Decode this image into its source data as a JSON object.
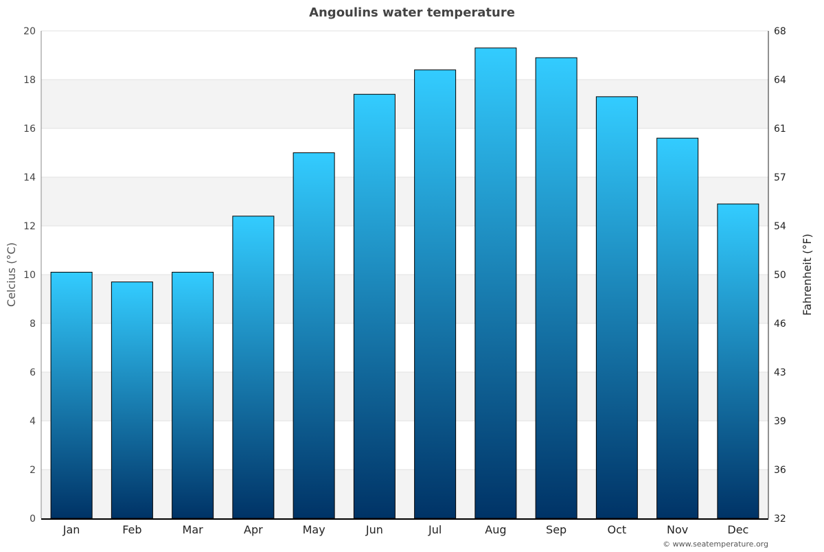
{
  "chart_data": {
    "type": "bar",
    "title": "Angoulins water temperature",
    "ylabel": "Celcius (°C)",
    "ylabel_right": "Fahrenheit (°F)",
    "xlabel": "",
    "categories": [
      "Jan",
      "Feb",
      "Mar",
      "Apr",
      "May",
      "Jun",
      "Jul",
      "Aug",
      "Sep",
      "Oct",
      "Nov",
      "Dec"
    ],
    "values": [
      10.1,
      9.7,
      10.1,
      12.4,
      15.0,
      17.4,
      18.4,
      19.3,
      18.9,
      17.3,
      15.6,
      12.9
    ],
    "ylim": [
      0,
      20
    ],
    "yticks": [
      0,
      2,
      4,
      6,
      8,
      10,
      12,
      14,
      16,
      18,
      20
    ],
    "yticks_right": [
      32,
      36,
      39,
      43,
      46,
      50,
      54,
      57,
      61,
      64,
      68
    ],
    "grid": true,
    "colors": {
      "bar_top": "#33ccff",
      "bar_bottom": "#003366",
      "band": "#f3f3f3"
    }
  },
  "credit": "© www.seatemperature.org"
}
